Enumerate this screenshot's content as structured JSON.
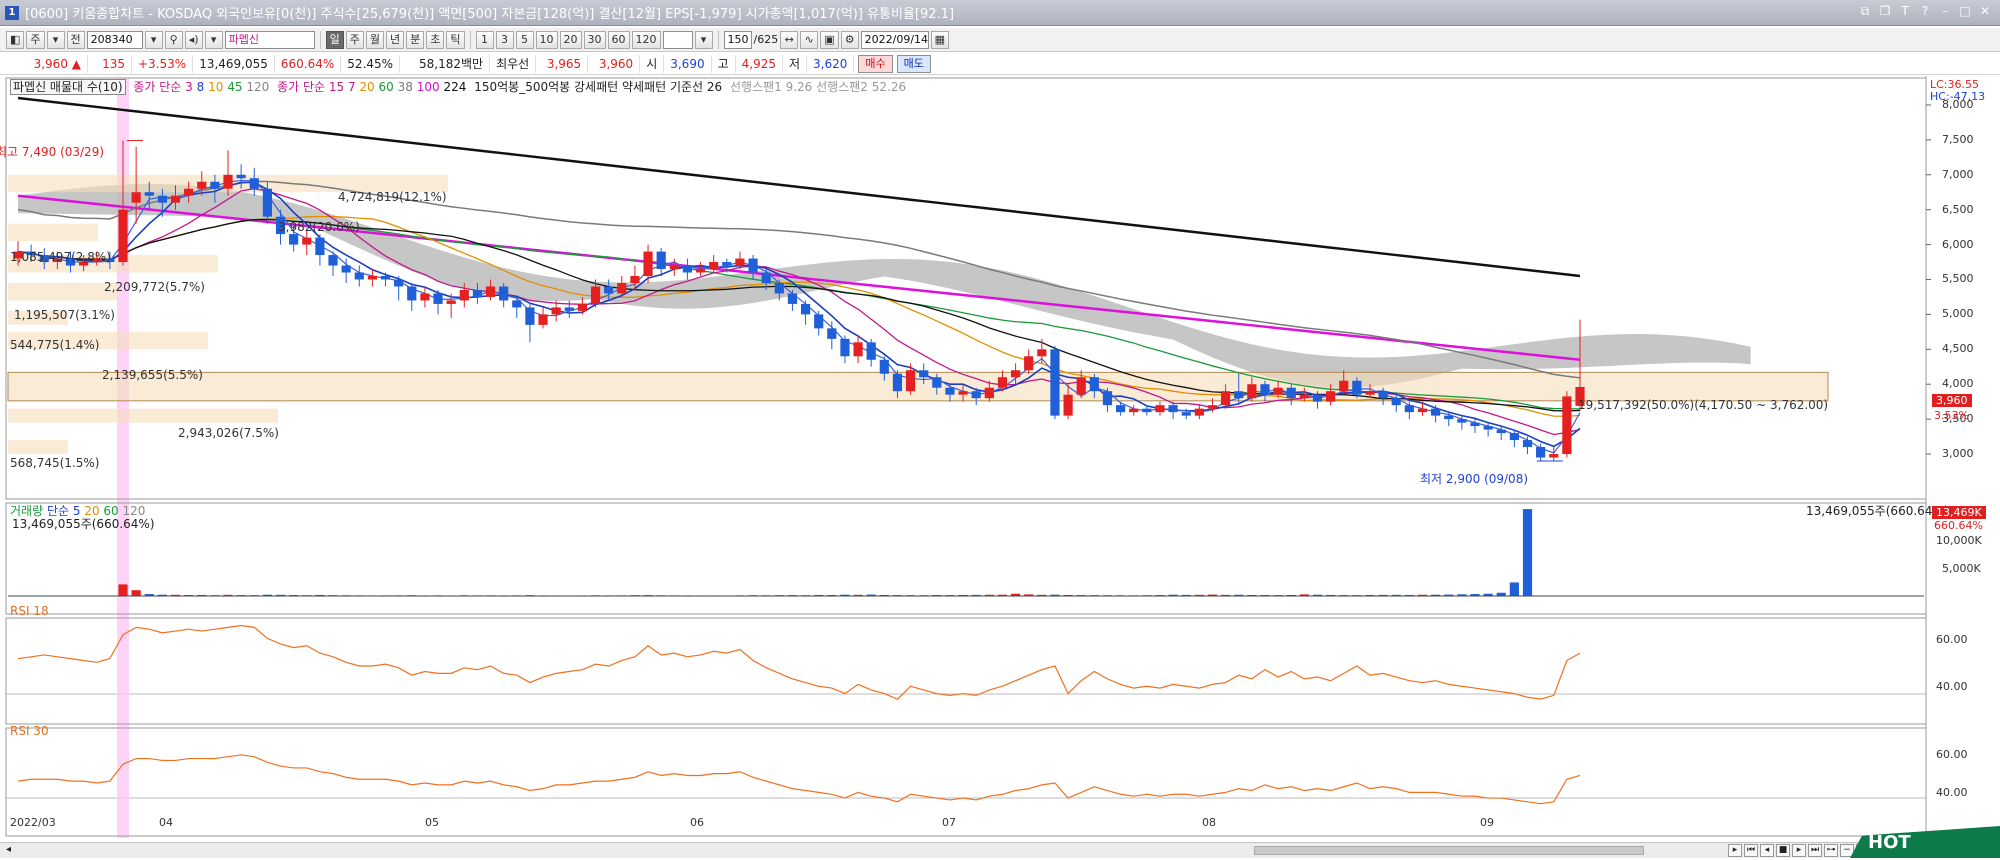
{
  "window": {
    "title": "[0600] 키움종합차트 - KOSDAQ 외국인보유[0(천)] 주식수[25,679(천)] 액면[500] 자본금[128(억)] 결산[12월] EPS[-1,979] 시가총액[1,017(억)] 유통비율[92.1]",
    "icon_label": "1"
  },
  "toolbar": {
    "type_label": "주",
    "all_label": "전",
    "code_value": "208340",
    "stock_name": "파멥신",
    "periods": [
      "일",
      "주",
      "월",
      "년",
      "분",
      "초",
      "틱"
    ],
    "intervals": [
      "1",
      "3",
      "5",
      "10",
      "20",
      "30",
      "60",
      "120"
    ],
    "count_value": "150",
    "count_total": "/625",
    "date_value": "2022/09/14"
  },
  "quote": {
    "price": "3,960 ▲",
    "change": "135",
    "change_pct": "+3.53%",
    "volume": "13,469,055",
    "volume_pct": "660.64%",
    "pct2": "52.45%",
    "amount": "58,182백만",
    "best_label": "최우선",
    "ask": "3,965",
    "bid": "3,960",
    "open_label": "시",
    "open": "3,690",
    "high_label": "고",
    "high": "4,925",
    "low_label": "저",
    "low": "3,620",
    "buy_label": "매수",
    "sell_label": "매도"
  },
  "price_panel": {
    "legend": {
      "name": "파멥신 매물대 수(10)",
      "ma3_label": "종가 단순 3",
      "ma3_periods": [
        "8",
        "10",
        "45",
        "120"
      ],
      "ma15_label": "종가 단순 15",
      "ma15_periods": [
        "7",
        "20",
        "60",
        "38",
        "100",
        "224"
      ],
      "pattern_text": "150억봉_500억봉 강세패턴 약세패턴 기준선 26",
      "span_text": "선행스팬1 9.26  선행스팬2 52.26"
    },
    "lc": "LC:36.55",
    "hc": "HC:-47.13",
    "y_ticks": [
      "8,000",
      "7,500",
      "7,000",
      "6,500",
      "6,000",
      "5,500",
      "5,000",
      "4,500",
      "4,000",
      "3,500",
      "3,000"
    ],
    "current_price_tag": "3,960",
    "current_pct_tag": "3.53%",
    "high_annotation": "최고 7,490 (03/29)",
    "low_annotation": "최저 2,900 (09/08)",
    "profile_labels": [
      "4,724,819(12.1%)",
      "1,085,497(2.8%)",
      "2,209,772(5.7%)",
      "1,195,507(3.1%)",
      "544,775(1.4%)",
      "2,139,655(5.5%)",
      "2,943,026(7.5%)",
      "568,745(1.5%)",
      "19,517,392(50.0%)(4,170.50 ~ 3,762.00)"
    ],
    "profile_mid_label": "3,982(20.6%)"
  },
  "volume_panel": {
    "legend_name": "거래량",
    "legend_ma": "단순 5",
    "legend_periods": [
      "20",
      "60",
      "120"
    ],
    "left_value": "13,469,055주(660.64%)",
    "right_value": "13,469,055주(660.64%)",
    "y_ticks": [
      "10,000K",
      "5,000K"
    ],
    "tag_value": "13,469K",
    "tag_pct": "660.64%"
  },
  "rsi18": {
    "label": "RSI 18",
    "y_ticks": [
      "60.00",
      "40.00"
    ]
  },
  "rsi30": {
    "label": "RSI 30",
    "y_ticks": [
      "60.00",
      "40.00"
    ]
  },
  "x_axis": {
    "labels": [
      "2022/03",
      "04",
      "05",
      "06",
      "07",
      "08",
      "09"
    ]
  },
  "hot_label": "HOT",
  "chart_data": {
    "type": "candlestick",
    "x_labels": [
      "2022/03",
      "04",
      "05",
      "06",
      "07",
      "08",
      "09"
    ],
    "ylim": [
      2800,
      8300
    ],
    "price_series": [
      {
        "o": 5800,
        "c": 5900,
        "h": 6050,
        "l": 5700
      },
      {
        "o": 5900,
        "c": 5850,
        "h": 6000,
        "l": 5750
      },
      {
        "o": 5850,
        "c": 5750,
        "h": 5950,
        "l": 5650
      },
      {
        "o": 5750,
        "c": 5800,
        "h": 5900,
        "l": 5650
      },
      {
        "o": 5800,
        "c": 5700,
        "h": 5900,
        "l": 5600
      },
      {
        "o": 5700,
        "c": 5750,
        "h": 5850,
        "l": 5620
      },
      {
        "o": 5750,
        "c": 5800,
        "h": 5900,
        "l": 5700
      },
      {
        "o": 5800,
        "c": 5750,
        "h": 5900,
        "l": 5650
      },
      {
        "o": 5750,
        "c": 6500,
        "h": 7490,
        "l": 5700
      },
      {
        "o": 6600,
        "c": 6750,
        "h": 7400,
        "l": 6300
      },
      {
        "o": 6750,
        "c": 6700,
        "h": 6900,
        "l": 6500
      },
      {
        "o": 6700,
        "c": 6600,
        "h": 6800,
        "l": 6400
      },
      {
        "o": 6600,
        "c": 6700,
        "h": 6850,
        "l": 6500
      },
      {
        "o": 6700,
        "c": 6800,
        "h": 6900,
        "l": 6600
      },
      {
        "o": 6800,
        "c": 6900,
        "h": 7050,
        "l": 6700
      },
      {
        "o": 6900,
        "c": 6800,
        "h": 7000,
        "l": 6600
      },
      {
        "o": 6800,
        "c": 7000,
        "h": 7350,
        "l": 6700
      },
      {
        "o": 7000,
        "c": 6950,
        "h": 7150,
        "l": 6800
      },
      {
        "o": 6950,
        "c": 6800,
        "h": 7100,
        "l": 6700
      },
      {
        "o": 6800,
        "c": 6400,
        "h": 6900,
        "l": 6300
      },
      {
        "o": 6400,
        "c": 6150,
        "h": 6500,
        "l": 6000
      },
      {
        "o": 6150,
        "c": 6000,
        "h": 6300,
        "l": 5900
      },
      {
        "o": 6000,
        "c": 6100,
        "h": 6200,
        "l": 5850
      },
      {
        "o": 6100,
        "c": 5850,
        "h": 6150,
        "l": 5700
      },
      {
        "o": 5850,
        "c": 5700,
        "h": 5900,
        "l": 5550
      },
      {
        "o": 5700,
        "c": 5600,
        "h": 5800,
        "l": 5450
      },
      {
        "o": 5600,
        "c": 5500,
        "h": 5700,
        "l": 5400
      },
      {
        "o": 5500,
        "c": 5550,
        "h": 5650,
        "l": 5400
      },
      {
        "o": 5550,
        "c": 5500,
        "h": 5600,
        "l": 5400
      },
      {
        "o": 5500,
        "c": 5400,
        "h": 5550,
        "l": 5200
      },
      {
        "o": 5400,
        "c": 5200,
        "h": 5450,
        "l": 5050
      },
      {
        "o": 5200,
        "c": 5300,
        "h": 5400,
        "l": 5100
      },
      {
        "o": 5300,
        "c": 5150,
        "h": 5350,
        "l": 5000
      },
      {
        "o": 5150,
        "c": 5200,
        "h": 5300,
        "l": 4950
      },
      {
        "o": 5200,
        "c": 5350,
        "h": 5450,
        "l": 5100
      },
      {
        "o": 5350,
        "c": 5250,
        "h": 5450,
        "l": 5150
      },
      {
        "o": 5250,
        "c": 5400,
        "h": 5500,
        "l": 5200
      },
      {
        "o": 5400,
        "c": 5200,
        "h": 5450,
        "l": 5100
      },
      {
        "o": 5200,
        "c": 5100,
        "h": 5250,
        "l": 4950
      },
      {
        "o": 5100,
        "c": 4850,
        "h": 5150,
        "l": 4600
      },
      {
        "o": 4850,
        "c": 5000,
        "h": 5100,
        "l": 4800
      },
      {
        "o": 5000,
        "c": 5100,
        "h": 5200,
        "l": 4900
      },
      {
        "o": 5100,
        "c": 5050,
        "h": 5200,
        "l": 4950
      },
      {
        "o": 5050,
        "c": 5150,
        "h": 5250,
        "l": 5000
      },
      {
        "o": 5150,
        "c": 5400,
        "h": 5500,
        "l": 5100
      },
      {
        "o": 5400,
        "c": 5300,
        "h": 5500,
        "l": 5200
      },
      {
        "o": 5300,
        "c": 5450,
        "h": 5550,
        "l": 5250
      },
      {
        "o": 5450,
        "c": 5550,
        "h": 5700,
        "l": 5350
      },
      {
        "o": 5550,
        "c": 5900,
        "h": 6000,
        "l": 5450
      },
      {
        "o": 5900,
        "c": 5650,
        "h": 5950,
        "l": 5550
      },
      {
        "o": 5650,
        "c": 5700,
        "h": 5800,
        "l": 5550
      },
      {
        "o": 5700,
        "c": 5600,
        "h": 5800,
        "l": 5500
      },
      {
        "o": 5600,
        "c": 5650,
        "h": 5750,
        "l": 5550
      },
      {
        "o": 5650,
        "c": 5750,
        "h": 5850,
        "l": 5600
      },
      {
        "o": 5750,
        "c": 5700,
        "h": 5800,
        "l": 5600
      },
      {
        "o": 5700,
        "c": 5800,
        "h": 5900,
        "l": 5650
      },
      {
        "o": 5800,
        "c": 5600,
        "h": 5850,
        "l": 5500
      },
      {
        "o": 5600,
        "c": 5450,
        "h": 5650,
        "l": 5350
      },
      {
        "o": 5450,
        "c": 5300,
        "h": 5500,
        "l": 5200
      },
      {
        "o": 5300,
        "c": 5150,
        "h": 5350,
        "l": 5050
      },
      {
        "o": 5150,
        "c": 5000,
        "h": 5200,
        "l": 4850
      },
      {
        "o": 5000,
        "c": 4800,
        "h": 5050,
        "l": 4700
      },
      {
        "o": 4800,
        "c": 4650,
        "h": 4900,
        "l": 4500
      },
      {
        "o": 4650,
        "c": 4400,
        "h": 4700,
        "l": 4300
      },
      {
        "o": 4400,
        "c": 4600,
        "h": 4700,
        "l": 4300
      },
      {
        "o": 4600,
        "c": 4350,
        "h": 4650,
        "l": 4250
      },
      {
        "o": 4350,
        "c": 4150,
        "h": 4400,
        "l": 4050
      },
      {
        "o": 4150,
        "c": 3900,
        "h": 4200,
        "l": 3800
      },
      {
        "o": 3900,
        "c": 4200,
        "h": 4300,
        "l": 3850
      },
      {
        "o": 4200,
        "c": 4100,
        "h": 4300,
        "l": 4000
      },
      {
        "o": 4100,
        "c": 3950,
        "h": 4150,
        "l": 3850
      },
      {
        "o": 3950,
        "c": 3850,
        "h": 4000,
        "l": 3750
      },
      {
        "o": 3850,
        "c": 3900,
        "h": 4000,
        "l": 3750
      },
      {
        "o": 3900,
        "c": 3800,
        "h": 3950,
        "l": 3700
      },
      {
        "o": 3800,
        "c": 3950,
        "h": 4050,
        "l": 3750
      },
      {
        "o": 3950,
        "c": 4100,
        "h": 4200,
        "l": 3900
      },
      {
        "o": 4100,
        "c": 4200,
        "h": 4300,
        "l": 4000
      },
      {
        "o": 4200,
        "c": 4400,
        "h": 4500,
        "l": 4150
      },
      {
        "o": 4400,
        "c": 4500,
        "h": 4650,
        "l": 4300
      },
      {
        "o": 4500,
        "c": 3550,
        "h": 4550,
        "l": 3500
      },
      {
        "o": 3550,
        "c": 3850,
        "h": 4000,
        "l": 3500
      },
      {
        "o": 3850,
        "c": 4100,
        "h": 4200,
        "l": 3800
      },
      {
        "o": 4100,
        "c": 3900,
        "h": 4150,
        "l": 3800
      },
      {
        "o": 3900,
        "c": 3700,
        "h": 3950,
        "l": 3600
      },
      {
        "o": 3700,
        "c": 3600,
        "h": 3750,
        "l": 3550
      },
      {
        "o": 3600,
        "c": 3650,
        "h": 3700,
        "l": 3550
      },
      {
        "o": 3650,
        "c": 3600,
        "h": 3700,
        "l": 3550
      },
      {
        "o": 3600,
        "c": 3700,
        "h": 3750,
        "l": 3550
      },
      {
        "o": 3700,
        "c": 3600,
        "h": 3750,
        "l": 3500
      },
      {
        "o": 3600,
        "c": 3550,
        "h": 3650,
        "l": 3500
      },
      {
        "o": 3550,
        "c": 3650,
        "h": 3700,
        "l": 3500
      },
      {
        "o": 3650,
        "c": 3700,
        "h": 3800,
        "l": 3600
      },
      {
        "o": 3700,
        "c": 3900,
        "h": 4000,
        "l": 3650
      },
      {
        "o": 3900,
        "c": 3800,
        "h": 4150,
        "l": 3700
      },
      {
        "o": 3800,
        "c": 4000,
        "h": 4100,
        "l": 3750
      },
      {
        "o": 4000,
        "c": 3850,
        "h": 4050,
        "l": 3750
      },
      {
        "o": 3850,
        "c": 3950,
        "h": 4050,
        "l": 3800
      },
      {
        "o": 3950,
        "c": 3800,
        "h": 4000,
        "l": 3700
      },
      {
        "o": 3800,
        "c": 3850,
        "h": 3950,
        "l": 3750
      },
      {
        "o": 3850,
        "c": 3750,
        "h": 3900,
        "l": 3650
      },
      {
        "o": 3750,
        "c": 3900,
        "h": 4000,
        "l": 3700
      },
      {
        "o": 3900,
        "c": 4050,
        "h": 4200,
        "l": 3850
      },
      {
        "o": 4050,
        "c": 3850,
        "h": 4100,
        "l": 3800
      },
      {
        "o": 3850,
        "c": 3900,
        "h": 4000,
        "l": 3800
      },
      {
        "o": 3900,
        "c": 3800,
        "h": 3950,
        "l": 3700
      },
      {
        "o": 3800,
        "c": 3700,
        "h": 3850,
        "l": 3600
      },
      {
        "o": 3700,
        "c": 3600,
        "h": 3750,
        "l": 3500
      },
      {
        "o": 3600,
        "c": 3650,
        "h": 3750,
        "l": 3550
      },
      {
        "o": 3650,
        "c": 3550,
        "h": 3700,
        "l": 3450
      },
      {
        "o": 3550,
        "c": 3500,
        "h": 3600,
        "l": 3400
      },
      {
        "o": 3500,
        "c": 3450,
        "h": 3550,
        "l": 3350
      },
      {
        "o": 3450,
        "c": 3400,
        "h": 3500,
        "l": 3300
      },
      {
        "o": 3400,
        "c": 3350,
        "h": 3450,
        "l": 3250
      },
      {
        "o": 3350,
        "c": 3300,
        "h": 3400,
        "l": 3200
      },
      {
        "o": 3300,
        "c": 3200,
        "h": 3350,
        "l": 3100
      },
      {
        "o": 3200,
        "c": 3100,
        "h": 3250,
        "l": 3000
      },
      {
        "o": 3100,
        "c": 2950,
        "h": 3150,
        "l": 2900
      },
      {
        "o": 2950,
        "c": 3000,
        "h": 3100,
        "l": 2900
      },
      {
        "o": 3000,
        "c": 3825,
        "h": 3900,
        "l": 2950
      },
      {
        "o": 3690,
        "c": 3960,
        "h": 4925,
        "l": 3620
      }
    ],
    "volume_series_k": [
      30,
      25,
      20,
      20,
      18,
      22,
      25,
      20,
      1800,
      900,
      300,
      200,
      180,
      150,
      160,
      120,
      180,
      140,
      130,
      200,
      180,
      150,
      120,
      160,
      130,
      110,
      100,
      90,
      95,
      100,
      120,
      90,
      100,
      85,
      110,
      95,
      105,
      90,
      100,
      130,
      90,
      85,
      80,
      90,
      110,
      95,
      100,
      130,
      140,
      110,
      95,
      90,
      85,
      90,
      80,
      100,
      120,
      110,
      130,
      140,
      120,
      160,
      150,
      200,
      180,
      220,
      160,
      140,
      130,
      120,
      150,
      140,
      160,
      170,
      190,
      200,
      350,
      250,
      180,
      200,
      160,
      140,
      130,
      120,
      110,
      100,
      120,
      150,
      200,
      170,
      180,
      220,
      170,
      190,
      160,
      150,
      140,
      160,
      250,
      200,
      160,
      140,
      130,
      150,
      170,
      180,
      160,
      190,
      200,
      220,
      260,
      300,
      350,
      500,
      2100,
      13469
    ],
    "ma_lines": {
      "ma224_start": 8100,
      "ma224_end": 5550,
      "ma120_start": 6700,
      "ma120_end": 4350,
      "cloud": "선행스팬"
    },
    "rsi18_values": [
      49,
      50,
      51,
      50,
      49,
      48,
      47,
      49,
      62,
      66,
      65,
      63,
      64,
      65,
      64,
      65,
      66,
      67,
      66,
      60,
      57,
      55,
      56,
      52,
      50,
      47,
      45,
      45,
      46,
      44,
      40,
      42,
      41,
      41,
      44,
      43,
      45,
      41,
      40,
      36,
      39,
      41,
      42,
      43,
      46,
      45,
      48,
      50,
      56,
      51,
      52,
      50,
      51,
      53,
      52,
      54,
      48,
      44,
      41,
      38,
      36,
      34,
      33,
      30,
      35,
      32,
      30,
      27,
      34,
      32,
      30,
      29,
      30,
      29,
      32,
      34,
      37,
      40,
      43,
      45,
      30,
      37,
      42,
      38,
      35,
      33,
      34,
      33,
      35,
      34,
      33,
      35,
      36,
      40,
      38,
      43,
      39,
      42,
      38,
      39,
      37,
      41,
      45,
      40,
      41,
      39,
      37,
      36,
      37,
      35,
      34,
      33,
      32,
      31,
      30,
      28,
      27,
      29,
      48,
      52
    ],
    "rsi30_values": [
      46,
      47,
      47,
      47,
      46,
      46,
      45,
      46,
      55,
      58,
      58,
      57,
      57,
      58,
      58,
      58,
      59,
      60,
      59,
      56,
      54,
      53,
      53,
      51,
      50,
      48,
      47,
      47,
      47,
      46,
      44,
      45,
      44,
      44,
      46,
      45,
      46,
      44,
      43,
      41,
      42,
      44,
      44,
      45,
      46,
      46,
      47,
      48,
      51,
      49,
      50,
      49,
      49,
      50,
      50,
      51,
      48,
      46,
      44,
      42,
      41,
      40,
      39,
      37,
      40,
      38,
      37,
      35,
      39,
      38,
      37,
      36,
      37,
      36,
      38,
      39,
      41,
      42,
      44,
      45,
      37,
      40,
      43,
      41,
      39,
      38,
      39,
      38,
      39,
      39,
      38,
      39,
      40,
      42,
      41,
      44,
      42,
      43,
      41,
      42,
      41,
      43,
      45,
      42,
      43,
      42,
      40,
      40,
      40,
      39,
      38,
      38,
      37,
      37,
      36,
      35,
      34,
      35,
      47,
      49
    ]
  }
}
